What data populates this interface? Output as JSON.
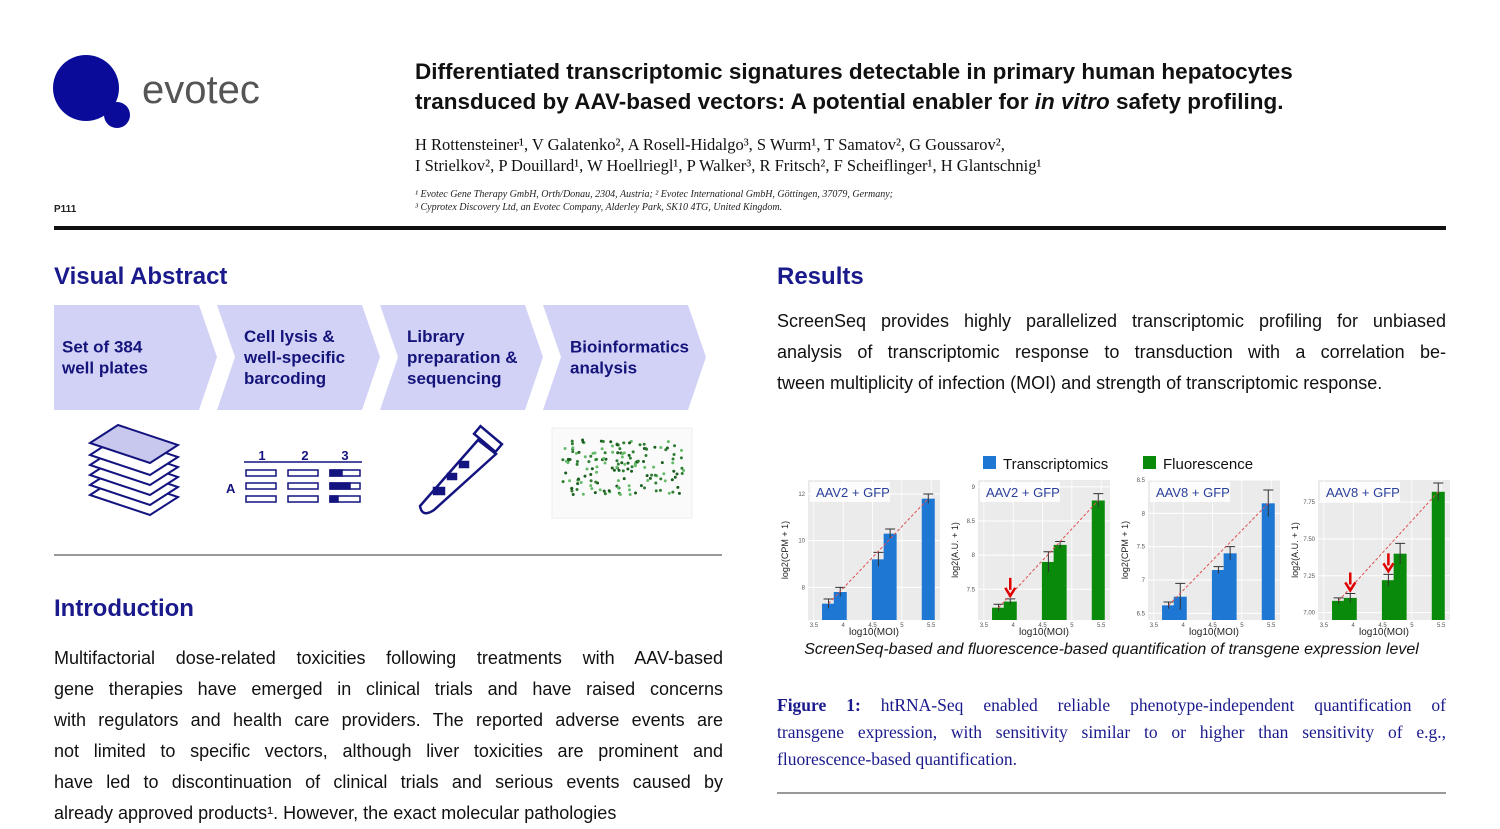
{
  "header": {
    "logo_text": "evotec",
    "poster_id": "P111",
    "title_line1": "Differentiated transcriptomic signatures detectable in primary human hepatocytes",
    "title_line2": [
      "transduced by AAV-based vectors: A potential enabler for ",
      "in vitro",
      " safety profiling."
    ],
    "authors": [
      "H Rottensteiner¹, V Galatenko², A Rosell-Hidalgo³, S Wurm¹, T Samatov², G Goussarov²,",
      "I Strielkov², P Douillard¹, W Hoellriegl¹, P Walker³, R Fritsch², F Scheiflinger¹, H Glantschnig¹"
    ],
    "affiliations": [
      "¹ Evotec Gene Therapy GmbH, Orth/Donau, 2304, Austria; ² Evotec International GmbH, Göttingen, 37079, Germany;",
      "³ Cyprotex Discovery Ltd, an Evotec Company, Alderley Park, SK10 4TG, United Kingdom."
    ]
  },
  "visual_abstract": {
    "heading": "Visual Abstract",
    "steps": [
      {
        "lines": [
          "Set of 384",
          "well plates"
        ]
      },
      {
        "lines": [
          "Cell lysis &",
          "well-specific",
          "barcoding"
        ]
      },
      {
        "lines": [
          "Library",
          "preparation &",
          "sequencing"
        ]
      },
      {
        "lines": [
          "Bioinformatics",
          "analysis"
        ]
      }
    ],
    "barcode_labels": [
      "1",
      "2",
      "3",
      "A"
    ]
  },
  "introduction": {
    "heading": "Introduction",
    "lines": [
      "Multifactorial dose-related toxicities following treatments with AAV-based",
      "gene therapies have emerged in clinical trials and have raised concerns",
      "with regulators and health care providers. The reported adverse events are",
      "not limited to specific vectors, although liver toxicities are prominent and",
      "have led to discontinuation of clinical trials and serious events caused by",
      "already approved products¹. However, the exact molecular pathologies"
    ]
  },
  "results": {
    "heading": "Results",
    "lines": [
      "ScreenSeq provides highly parallelized transcriptomic profiling for unbiased",
      "analysis of transcriptomic response to transduction with a correlation be-",
      "tween multiplicity of infection (MOI) and strength of transcriptomic response."
    ]
  },
  "figure": {
    "legend": [
      {
        "name": "Transcriptomics",
        "color": "#1f77d4"
      },
      {
        "name": "Fluorescence",
        "color": "#0a8a0a"
      }
    ],
    "panels": [
      {
        "label": "AAV2 + GFP",
        "ylabel": "log2(CPM + 1)",
        "xlabel": "log10(MOI)",
        "color": "#1f77d4",
        "xlim": [
          3.4,
          5.65
        ],
        "xticks": [
          3.5,
          4.0,
          4.5,
          5.0,
          5.5
        ],
        "ylim": [
          6.6,
          12.6
        ],
        "yticks": [
          8,
          10,
          12
        ],
        "x": [
          3.75,
          3.95,
          4.6,
          4.8,
          5.45
        ],
        "values": [
          7.3,
          7.8,
          9.2,
          10.3,
          11.8
        ],
        "errors": [
          0.2,
          0.2,
          0.3,
          0.2,
          0.2
        ],
        "arrows": []
      },
      {
        "label": "AAV2 + GFP",
        "ylabel": "log2(A.U. + 1)",
        "xlabel": "log10(MOI)",
        "color": "#0a8a0a",
        "xlim": [
          3.4,
          5.65
        ],
        "xticks": [
          3.5,
          4.0,
          4.5,
          5.0,
          5.5
        ],
        "ylim": [
          7.05,
          9.1
        ],
        "yticks": [
          7.5,
          8.0,
          8.5,
          9.0
        ],
        "x": [
          3.75,
          3.95,
          4.6,
          4.8,
          5.45
        ],
        "values": [
          7.23,
          7.32,
          7.9,
          8.15,
          8.8
        ],
        "errors": [
          0.05,
          0.04,
          0.15,
          0.05,
          0.1
        ],
        "arrows": [
          1
        ]
      },
      {
        "label": "AAV8 + GFP",
        "ylabel": "log2(CPM + 1)",
        "xlabel": "log10(MOI)",
        "color": "#1f77d4",
        "xlim": [
          3.4,
          5.65
        ],
        "xticks": [
          3.5,
          4.0,
          4.5,
          5.0,
          5.5
        ],
        "ylim": [
          6.4,
          8.5
        ],
        "yticks": [
          6.5,
          7.0,
          7.5,
          8.0,
          8.5
        ],
        "x": [
          3.75,
          3.95,
          4.6,
          4.8,
          5.45
        ],
        "values": [
          6.62,
          6.75,
          7.15,
          7.4,
          8.15
        ],
        "errors": [
          0.05,
          0.2,
          0.05,
          0.1,
          0.2
        ],
        "arrows": []
      },
      {
        "label": "AAV8 + GFP",
        "ylabel": "log2(A.U. + 1)",
        "xlabel": "log10(MOI)",
        "color": "#0a8a0a",
        "xlim": [
          3.4,
          5.65
        ],
        "xticks": [
          3.5,
          4.0,
          4.5,
          5.0,
          5.5
        ],
        "ylim": [
          6.95,
          7.9
        ],
        "yticks": [
          {
            "value": 7,
            "label": "7.00"
          },
          {
            "value": 7.25,
            "label": "7.25"
          },
          {
            "value": 7.5,
            "label": "7.50"
          },
          {
            "value": 7.75,
            "label": "7.75"
          }
        ],
        "x": [
          3.75,
          3.95,
          4.6,
          4.8,
          5.45
        ],
        "values": [
          7.08,
          7.1,
          7.22,
          7.4,
          7.82
        ],
        "errors": [
          0.02,
          0.03,
          0.04,
          0.07,
          0.06
        ],
        "arrows": [
          1,
          2
        ]
      }
    ],
    "caption": "ScreenSeq-based and fluorescence-based quantification of transgene expression level",
    "figure_label": "Figure 1:",
    "description_lines": [
      "htRNA-Seq enabled reliable phenotype-independent quantification of",
      "transgene expression, with sensitivity similar to or higher than sensitivity of e.g.,",
      "fluorescence-based quantification."
    ]
  }
}
